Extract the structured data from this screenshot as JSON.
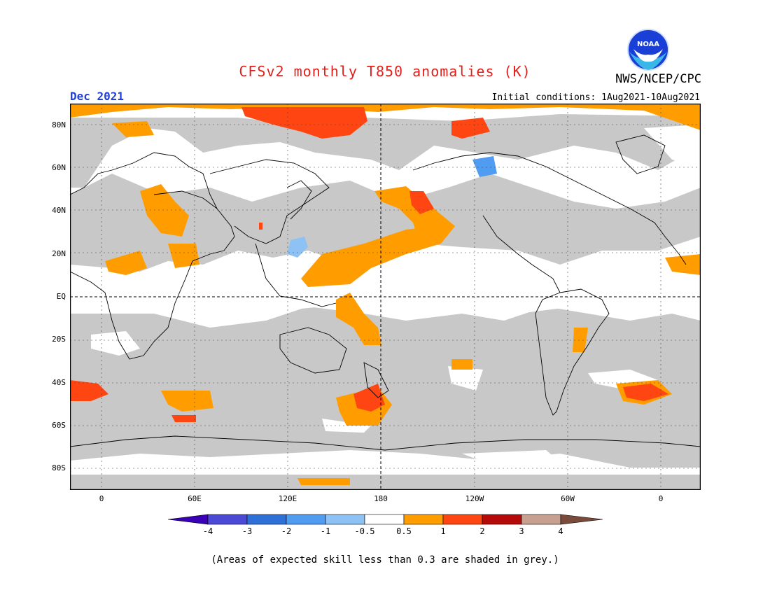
{
  "title": "CFSv2 monthly T850 anomalies (K)",
  "agency": "NWS/NCEP/CPC",
  "logo_text": "NOAA",
  "valid_month": "Dec 2021",
  "initial_conditions": "Initial conditions: 1Aug2021-10Aug2021",
  "lat_labels": [
    "80N",
    "60N",
    "40N",
    "20N",
    "EQ",
    "20S",
    "40S",
    "60S",
    "80S"
  ],
  "lon_labels": [
    "0",
    "60E",
    "120E",
    "180",
    "120W",
    "60W",
    "0"
  ],
  "colorbar": {
    "labels": [
      "-4",
      "-3",
      "-2",
      "-1",
      "-0.5",
      "0.5",
      "1",
      "2",
      "3",
      "4"
    ],
    "colors": [
      "#3a00b8",
      "#4a4ad6",
      "#2f6fd8",
      "#4f9cf0",
      "#8ec2f4",
      "#ffffff",
      "#ff9d00",
      "#ff4512",
      "#b40a0a",
      "#c8a090",
      "#7a4a3a"
    ]
  },
  "map_colors": {
    "low_skill_grey": "#c8c8c8",
    "warm_05_1": "#ff9d00",
    "warm_1_2": "#ff4512",
    "cool_05_1": "#8ec2f4",
    "cool_1_2": "#4f9cf0"
  },
  "footnote": "(Areas of expected skill less than 0.3 are shaded in grey.)"
}
